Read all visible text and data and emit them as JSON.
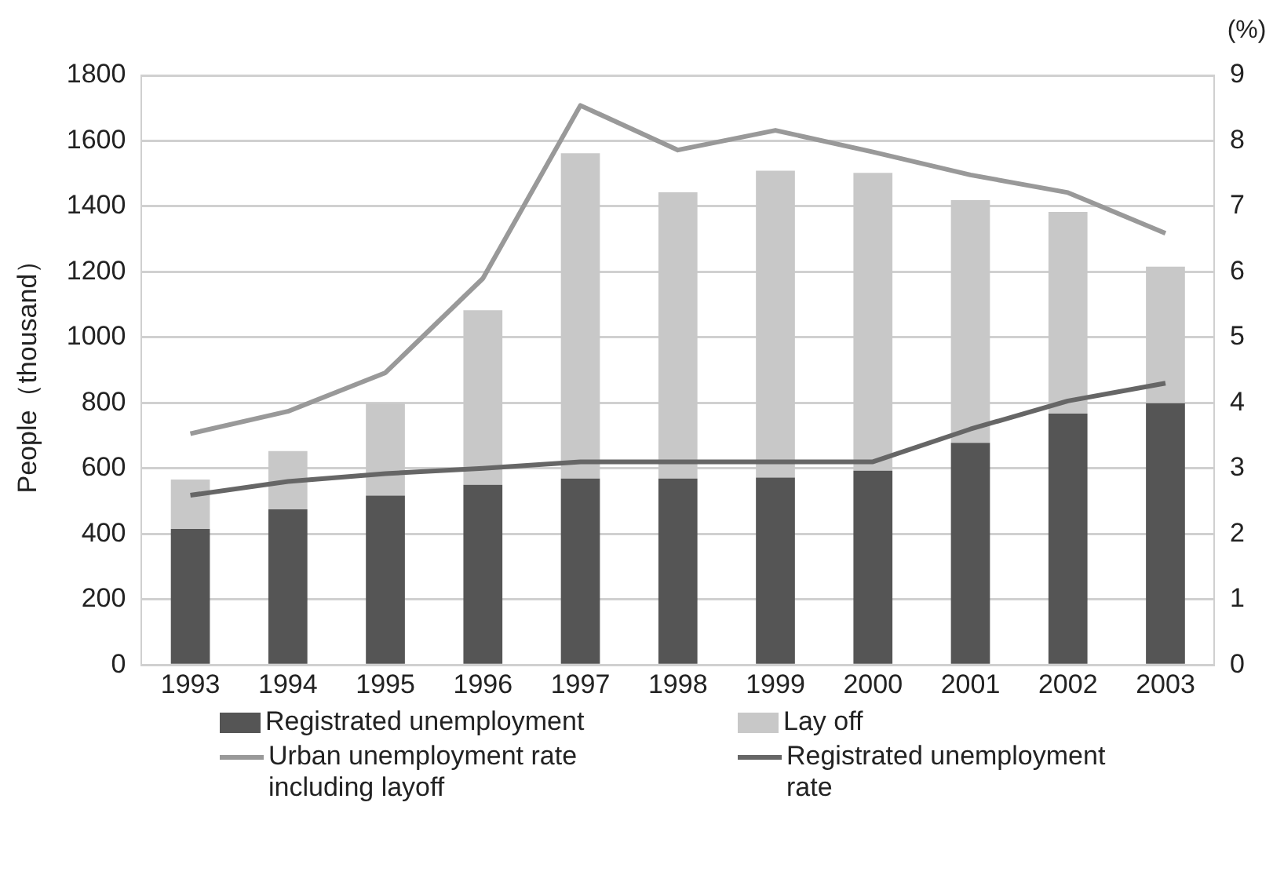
{
  "chart_data": {
    "type": "bar",
    "stacked": true,
    "ylabel": "People（thousand）",
    "y2label": "(%)",
    "categories": [
      "1993",
      "1994",
      "1995",
      "1996",
      "1997",
      "1998",
      "1999",
      "2000",
      "2001",
      "2002",
      "2003"
    ],
    "series": [
      {
        "name": "Registrated unemployment",
        "color": "#555555",
        "values": [
          415,
          475,
          517,
          550,
          569,
          569,
          572,
          593,
          678,
          767,
          799
        ]
      },
      {
        "name": "Lay off",
        "color": "#c8c8c8",
        "values": [
          151,
          178,
          282,
          533,
          993,
          874,
          937,
          909,
          741,
          616,
          417
        ]
      },
      {
        "name": "Urban unemployment rate including layoff",
        "type": "line",
        "axis": "y2",
        "color": "#999999",
        "values": [
          3.53,
          3.87,
          4.46,
          5.9,
          8.54,
          7.86,
          8.16,
          7.83,
          7.48,
          7.21,
          6.59
        ]
      },
      {
        "name": "Registrated unemployment rate",
        "type": "line",
        "axis": "y2",
        "color": "#666666",
        "values": [
          2.59,
          2.8,
          2.92,
          3.0,
          3.1,
          3.1,
          3.1,
          3.1,
          3.6,
          4.03,
          4.3
        ]
      }
    ],
    "ylim": [
      0,
      1800
    ],
    "yticks": [
      0,
      200,
      400,
      600,
      800,
      1000,
      1200,
      1400,
      1600,
      1800
    ],
    "y2lim": [
      0,
      9
    ],
    "y2ticks": [
      0,
      1,
      2,
      3,
      4,
      5,
      6,
      7,
      8,
      9
    ],
    "grid": "y",
    "legend": "bottom",
    "marker": "none",
    "line_style": "solid"
  }
}
